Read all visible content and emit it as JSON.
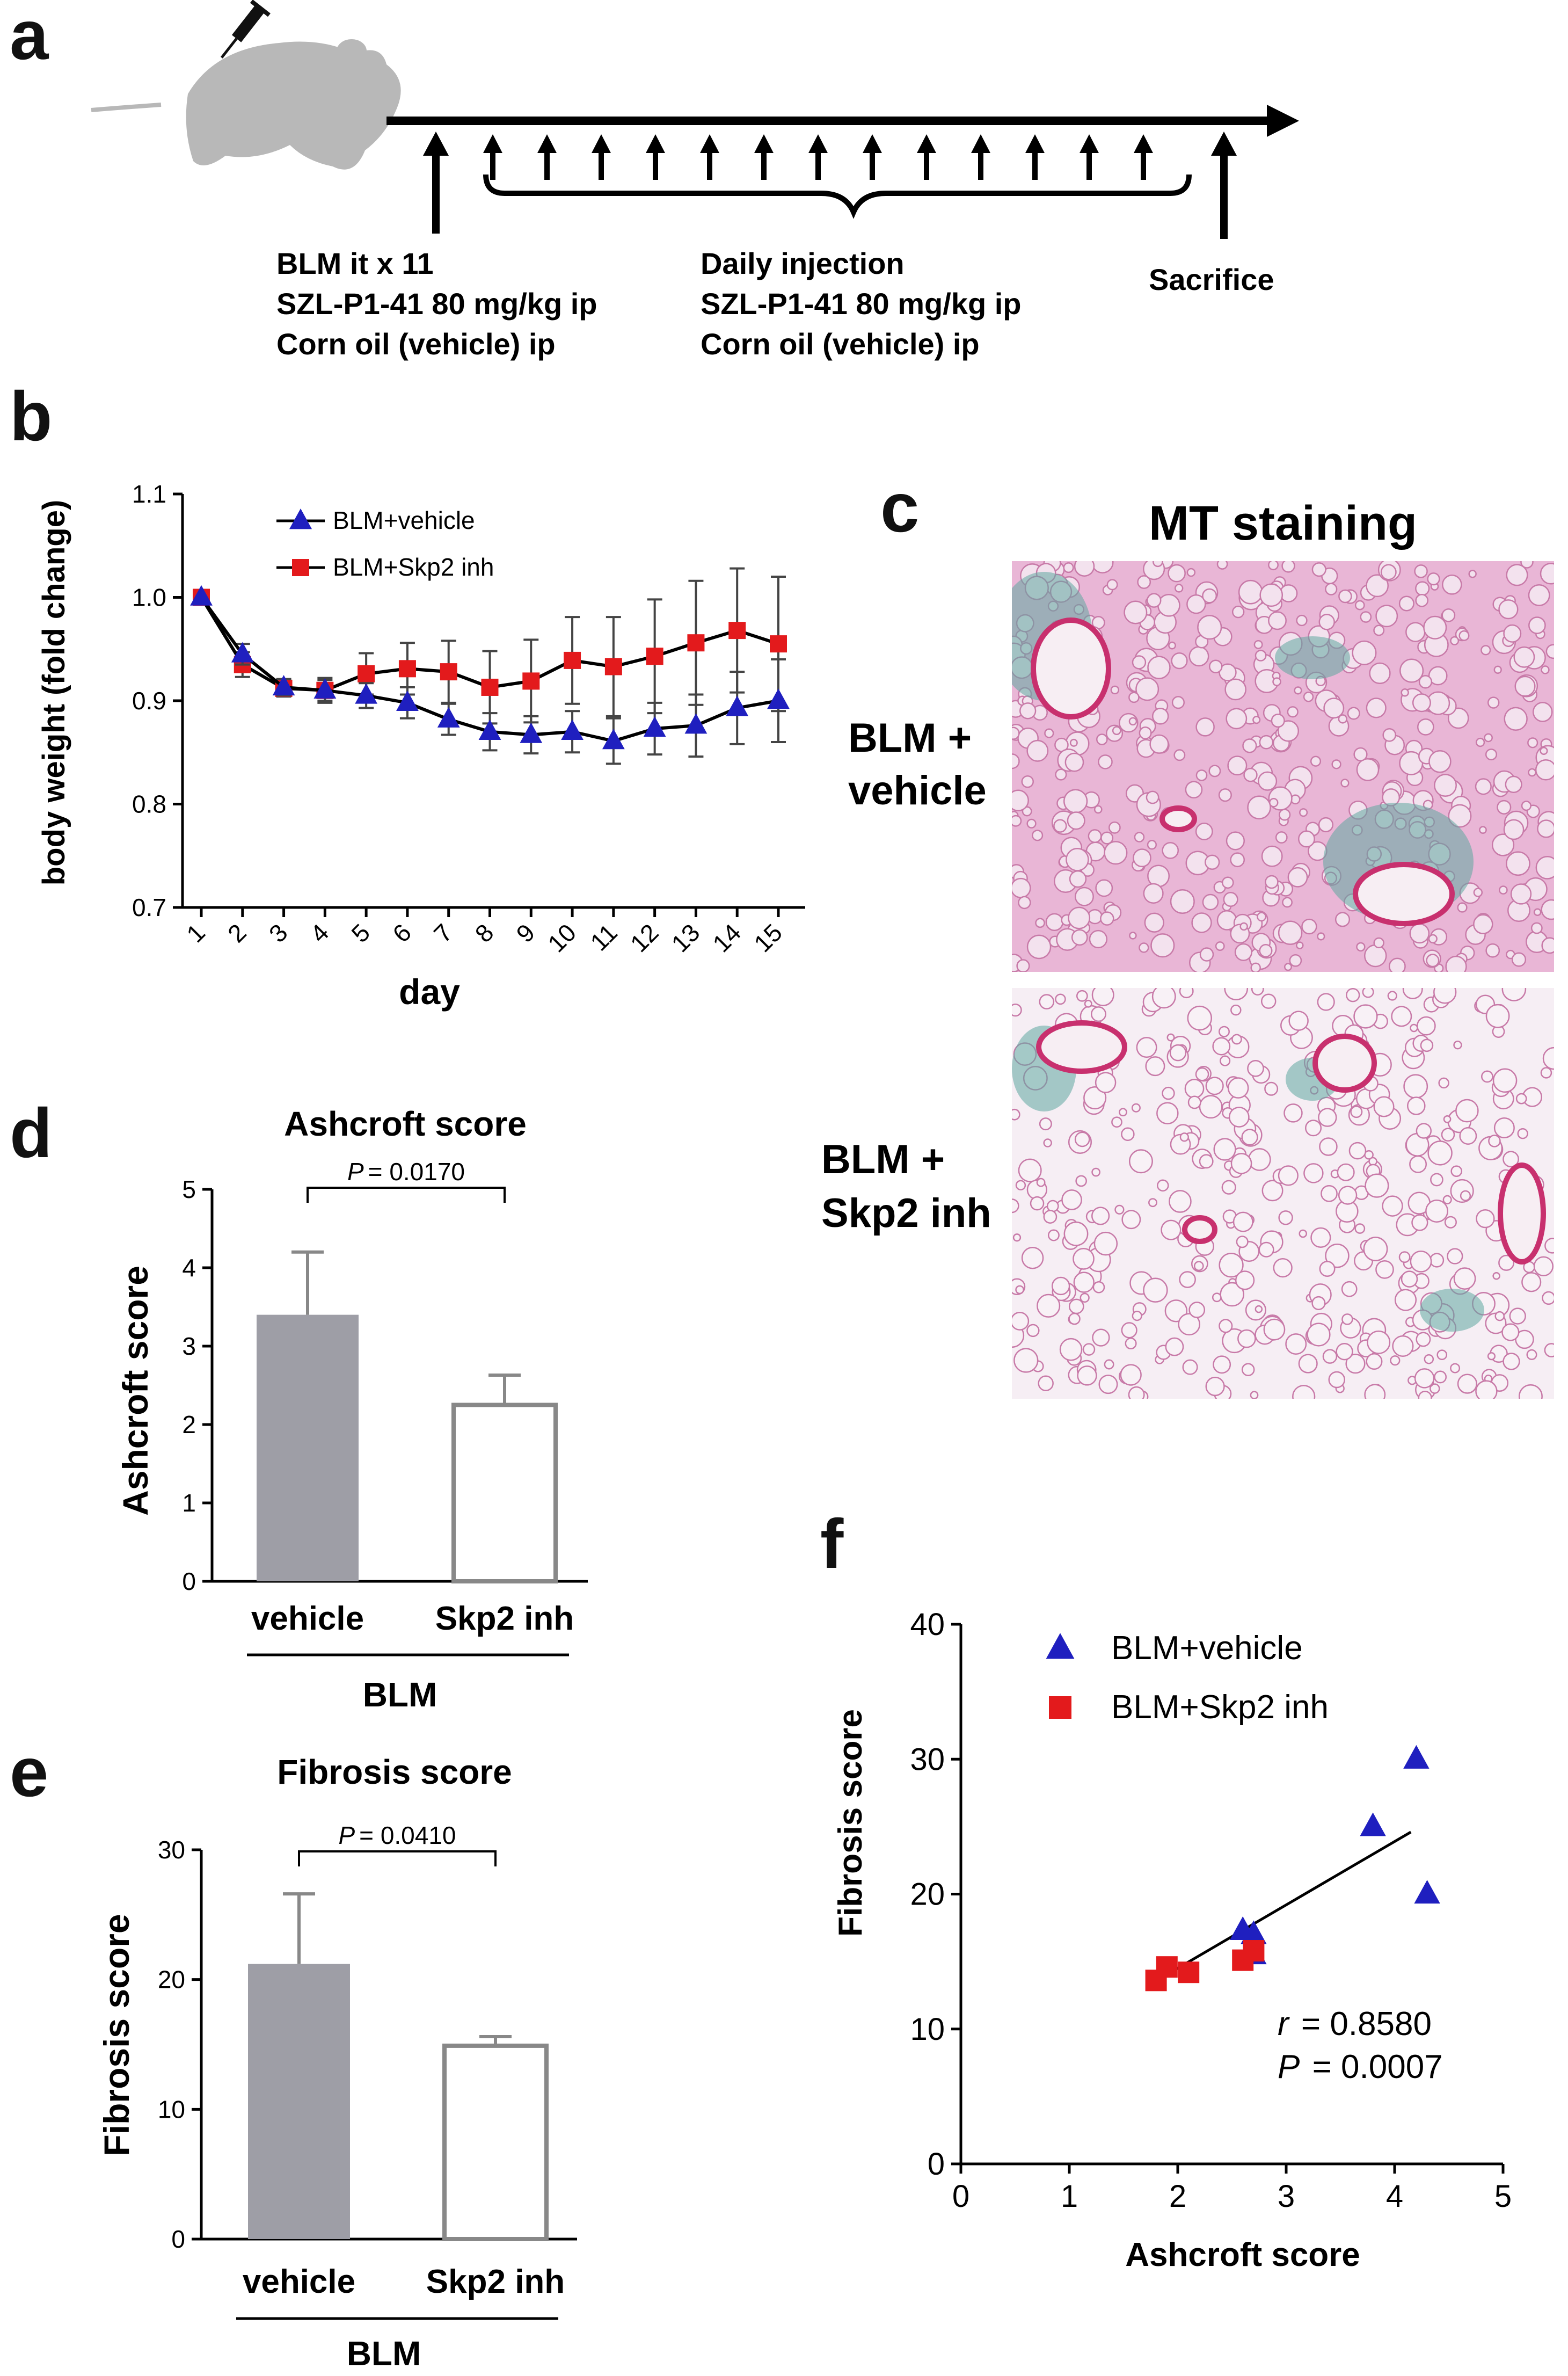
{
  "panels": {
    "a": {
      "letter": "a",
      "label_left": [
        "BLM it x 11",
        "SZL-P1-41 80 mg/kg ip",
        "Corn oil (vehicle) ip"
      ],
      "label_middle": [
        "Daily injection",
        "SZL-P1-41 80 mg/kg ip",
        "Corn oil (vehicle) ip"
      ],
      "label_right": "Sacrifice",
      "colors": {
        "mouse": "#b8b8b8",
        "arrow": "#000000"
      }
    },
    "b": {
      "letter": "b"
    },
    "c": {
      "letter": "c",
      "title": "MT staining",
      "row1_label": [
        "BLM +",
        "vehicle"
      ],
      "row2_label": [
        "BLM +",
        "Skp2 inh"
      ],
      "colors": {
        "tissue": "#e9b6d6",
        "background": "#f6eef4",
        "collagen": "#5fa8a0",
        "vessel": "#c8306e"
      }
    },
    "d": {
      "letter": "d",
      "group_label": "BLM"
    },
    "e": {
      "letter": "e",
      "group_label": "BLM"
    },
    "f": {
      "letter": "f",
      "r_label": "r",
      "r_value": "= 0.8580",
      "p_label": "P",
      "p_value": "= 0.0007"
    }
  },
  "chart_data": [
    {
      "id": "b",
      "type": "line",
      "xlabel": "day",
      "ylabel": "body weight (fold change)",
      "ylim": [
        0.7,
        1.1
      ],
      "yticks": [
        "0.7",
        "0.8",
        "0.9",
        "1.0",
        "1.1"
      ],
      "x": [
        1,
        2,
        3,
        4,
        5,
        6,
        7,
        8,
        9,
        10,
        11,
        12,
        13,
        14,
        15
      ],
      "legend_position": "top-left",
      "series": [
        {
          "name": "BLM+vehicle",
          "color": "#1f1fbf",
          "marker": "triangle",
          "values": [
            1.0,
            0.945,
            0.913,
            0.91,
            0.905,
            0.898,
            0.882,
            0.87,
            0.867,
            0.87,
            0.861,
            0.873,
            0.876,
            0.893,
            0.9
          ],
          "errors": [
            0.0,
            0.01,
            0.008,
            0.01,
            0.012,
            0.015,
            0.015,
            0.018,
            0.018,
            0.02,
            0.022,
            0.025,
            0.03,
            0.035,
            0.04
          ]
        },
        {
          "name": "BLM+Skp2 inh",
          "color": "#e31a1c",
          "marker": "square",
          "values": [
            1.0,
            0.935,
            0.912,
            0.91,
            0.926,
            0.931,
            0.928,
            0.913,
            0.919,
            0.939,
            0.933,
            0.943,
            0.956,
            0.968,
            0.955
          ],
          "errors": [
            0.0,
            0.012,
            0.008,
            0.012,
            0.02,
            0.025,
            0.03,
            0.035,
            0.04,
            0.042,
            0.048,
            0.055,
            0.06,
            0.06,
            0.065
          ]
        }
      ]
    },
    {
      "id": "d",
      "type": "bar",
      "title": "Ashcroft score",
      "ylabel": "Ashcroft score",
      "ylim": [
        0,
        5
      ],
      "yticks": [
        "0",
        "1",
        "2",
        "3",
        "4",
        "5"
      ],
      "categories": [
        "vehicle",
        "Skp2 inh"
      ],
      "values": [
        3.4,
        2.25
      ],
      "errors": [
        0.8,
        0.38
      ],
      "fills": [
        "#9e9ea6",
        "#ffffff"
      ],
      "p_label": "P",
      "p_value": "= 0.0170"
    },
    {
      "id": "e",
      "type": "bar",
      "title": "Fibrosis score",
      "ylabel": "Fibrosis score",
      "ylim": [
        0,
        30
      ],
      "yticks": [
        "0",
        "10",
        "20",
        "30"
      ],
      "categories": [
        "vehicle",
        "Skp2 inh"
      ],
      "values": [
        21.2,
        14.9
      ],
      "errors": [
        5.4,
        0.7
      ],
      "fills": [
        "#9e9ea6",
        "#ffffff"
      ],
      "p_label": "P",
      "p_value": "= 0.0410"
    },
    {
      "id": "f",
      "type": "scatter",
      "xlabel": "Ashcroft score",
      "ylabel": "Fibrosis score",
      "xlim": [
        0,
        5
      ],
      "ylim": [
        0,
        40
      ],
      "xticks": [
        "0",
        "1",
        "2",
        "3",
        "4",
        "5"
      ],
      "yticks": [
        "0",
        "10",
        "20",
        "30",
        "40"
      ],
      "legend_position": "top-left",
      "series": [
        {
          "name": "BLM+vehicle",
          "color": "#1f1fbf",
          "marker": "triangle",
          "points": [
            [
              4.2,
              30.0
            ],
            [
              3.8,
              25.0
            ],
            [
              4.3,
              20.0
            ],
            [
              2.6,
              17.3
            ],
            [
              2.7,
              17.0
            ],
            [
              2.7,
              15.5
            ]
          ]
        },
        {
          "name": "BLM+Skp2 inh",
          "color": "#e31a1c",
          "marker": "square",
          "points": [
            [
              1.8,
              13.6
            ],
            [
              1.9,
              14.6
            ],
            [
              2.1,
              14.2
            ],
            [
              2.6,
              15.1
            ],
            [
              2.7,
              15.8
            ]
          ]
        }
      ],
      "fit_line": [
        [
          1.85,
          13.8
        ],
        [
          4.15,
          24.6
        ]
      ]
    }
  ]
}
